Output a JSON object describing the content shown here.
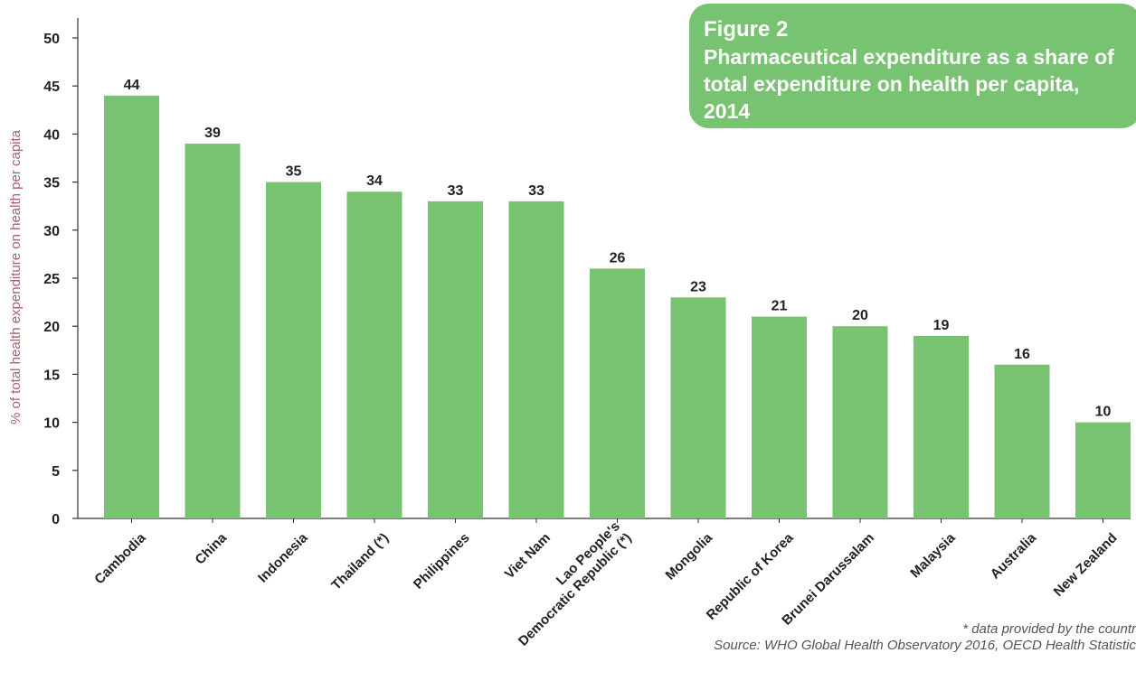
{
  "figure": {
    "label": "Figure 2",
    "title": "Pharmaceutical expenditure as a share of total expenditure on health per capita, 2014"
  },
  "footnotes": {
    "note": "* data provided by the countr",
    "source": "Source: WHO Global Health Observatory 2016, OECD Health Statistic"
  },
  "colors": {
    "bar": "#77c371",
    "ylabel": "#a8606a",
    "box": "#77c371"
  },
  "chart_data": {
    "type": "bar",
    "title": "Pharmaceutical expenditure as a share of total expenditure on health per capita, 2014",
    "xlabel": "",
    "ylabel": "% of total health expenditure on health per capita",
    "ylim": [
      0,
      50
    ],
    "yticks": [
      0,
      5,
      10,
      15,
      20,
      25,
      30,
      35,
      40,
      45,
      50
    ],
    "grid": false,
    "categories": [
      "Cambodia",
      "China",
      "Indonesia",
      "Thailand (*)",
      "Philippines",
      "Viet Nam",
      "Lao People's Democratic Republic (*)",
      "Mongolia",
      "Republic of Korea",
      "Brunei Darussalam",
      "Malaysia",
      "Australia",
      "New Zealand"
    ],
    "category_lines": [
      [
        "Cambodia"
      ],
      [
        "China"
      ],
      [
        "Indonesia"
      ],
      [
        "Thailand (*)"
      ],
      [
        "Philippines"
      ],
      [
        "Viet Nam"
      ],
      [
        "Lao People's",
        "Democratic Republic (*)"
      ],
      [
        "Mongolia"
      ],
      [
        "Republic of Korea"
      ],
      [
        "Brunei Darussalam"
      ],
      [
        "Malaysia"
      ],
      [
        "Australia"
      ],
      [
        "New Zealand"
      ]
    ],
    "values": [
      44,
      39,
      35,
      34,
      33,
      33,
      26,
      23,
      21,
      20,
      19,
      16,
      10
    ]
  }
}
